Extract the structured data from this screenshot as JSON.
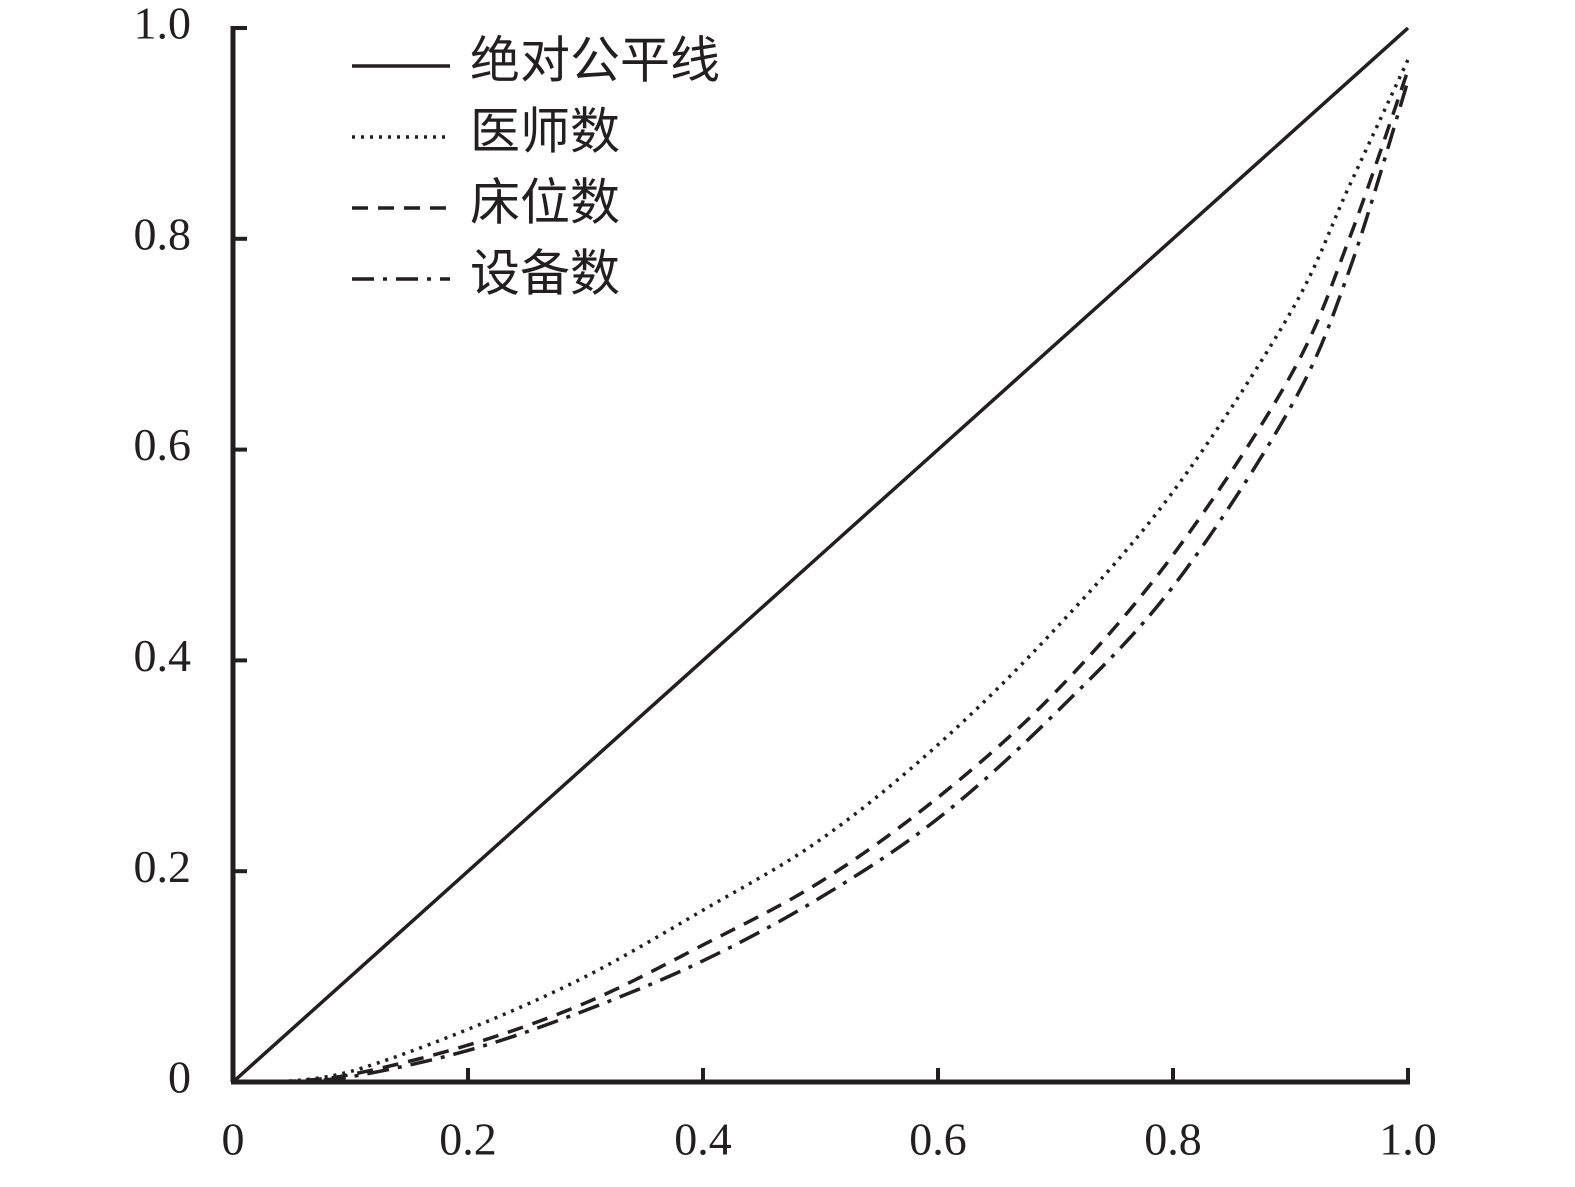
{
  "chart_data": {
    "type": "line",
    "xlim": [
      0,
      1
    ],
    "ylim": [
      0,
      1
    ],
    "xticks": [
      0,
      0.2,
      0.4,
      0.6,
      0.8,
      {
        "value": 1,
        "label": "1.0"
      }
    ],
    "yticks": [
      0,
      0.2,
      0.4,
      0.6,
      0.8,
      {
        "value": 1,
        "label": "1.0"
      }
    ],
    "legend": "upper left",
    "series": [
      {
        "name": "绝对公平线",
        "color": "#231f20",
        "dash": "solid",
        "x": [
          0,
          1
        ],
        "values": [
          0,
          1
        ]
      },
      {
        "name": "医师数",
        "color": "#231f20",
        "dash": "dotted",
        "x": [
          0.04,
          0.1,
          0.2,
          0.3,
          0.4,
          0.5,
          0.6,
          0.7,
          0.8,
          0.9,
          0.95,
          1
        ],
        "values": [
          0,
          0.01,
          0.05,
          0.1,
          0.163,
          0.23,
          0.32,
          0.43,
          0.56,
          0.73,
          0.85,
          0.97
        ]
      },
      {
        "name": "床位数",
        "color": "#231f20",
        "dash": "dashed",
        "x": [
          0.04,
          0.1,
          0.2,
          0.3,
          0.4,
          0.5,
          0.6,
          0.7,
          0.8,
          0.9,
          0.95,
          1
        ],
        "values": [
          0,
          0.007,
          0.035,
          0.075,
          0.13,
          0.19,
          0.27,
          0.37,
          0.5,
          0.67,
          0.8,
          0.96
        ]
      },
      {
        "name": "设备数",
        "color": "#231f20",
        "dash": "dashdot",
        "x": [
          0.04,
          0.1,
          0.2,
          0.3,
          0.4,
          0.5,
          0.6,
          0.7,
          0.8,
          0.9,
          0.95,
          1
        ],
        "values": [
          0,
          0.005,
          0.03,
          0.068,
          0.115,
          0.175,
          0.25,
          0.35,
          0.47,
          0.64,
          0.77,
          0.95
        ]
      }
    ]
  }
}
